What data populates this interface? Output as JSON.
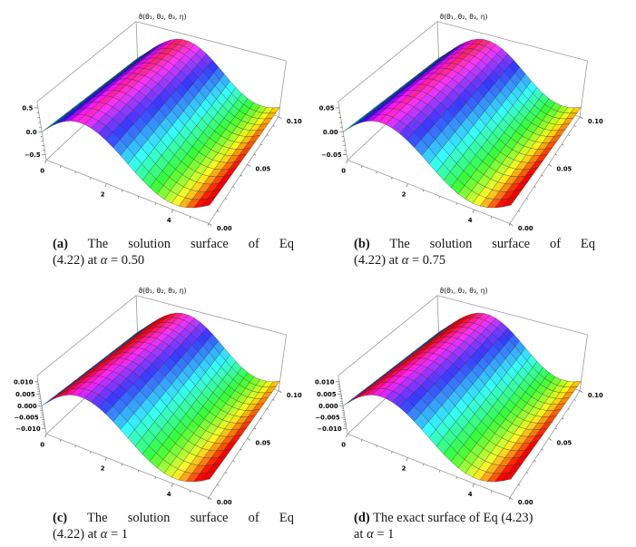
{
  "page": {
    "background": "#ffffff"
  },
  "captions": [
    {
      "label": "(a)",
      "line1": "The solution surface of Eq",
      "line2_pre": "(4.22) at ",
      "alpha": "α",
      "line2_post": " = 0.50",
      "justify": true
    },
    {
      "label": "(b)",
      "line1": "The solution surface of Eq",
      "line2_pre": "(4.22) at ",
      "alpha": "α",
      "line2_post": " = 0.75",
      "justify": true
    },
    {
      "label": "(c)",
      "line1": "The solution surface of Eq",
      "line2_pre": "(4.22) at ",
      "alpha": "α",
      "line2_post": " = 1",
      "justify": true
    },
    {
      "label": "(d)",
      "line1": "The exact surface of Eq (4.23)",
      "line2_pre": "at ",
      "alpha": "α",
      "line2_post": " = 1",
      "justify": false
    }
  ],
  "chart_data": [
    {
      "type": "surface",
      "id": "a",
      "title": "ϑ(θ₁, θ₂, θ₃, η)",
      "x_range": [
        0,
        5
      ],
      "x_ticks": [
        0,
        2,
        4
      ],
      "x_tick_labels": [
        "0",
        "2",
        "4"
      ],
      "x_minor_step": 0.5,
      "y_range": [
        0,
        0.1
      ],
      "y_ticks": [
        0,
        0.05,
        0.1
      ],
      "y_tick_labels": [
        "0.00",
        "0.05",
        "0.10"
      ],
      "y_minor_step": 0.01,
      "z_ticks": [
        0.5,
        0,
        -0.5
      ],
      "z_tick_labels": [
        "0.5",
        "0.0",
        "−0.5"
      ],
      "z_minor_step": 0.1,
      "amplitude": 0.5,
      "function": "ϑ ≈ 0.5·sin(1.164·x − 4.66·η)",
      "wave": {
        "a": 5.82,
        "b": -0.466
      },
      "hue_phase_peak": 1.45,
      "hue_peak": 0.88,
      "colormap": "rainbow: teal → blue → violet → magenta/red at ridge → cyan → green → yellow → orange → red",
      "mesh": [
        24,
        15
      ],
      "view_point": [
        1.3,
        -2.4,
        2
      ],
      "box_ratios": [
        1,
        1,
        0.4
      ],
      "grid": false,
      "legend": "none"
    },
    {
      "type": "surface",
      "id": "b",
      "title": "ϑ(θ₁, θ₂, θ₃, η)",
      "x_range": [
        0,
        5
      ],
      "x_ticks": [
        0,
        2,
        4
      ],
      "x_tick_labels": [
        "0",
        "2",
        "4"
      ],
      "x_minor_step": 0.5,
      "y_range": [
        0,
        0.1
      ],
      "y_ticks": [
        0,
        0.05,
        0.1
      ],
      "y_tick_labels": [
        "0.00",
        "0.05",
        "0.10"
      ],
      "y_minor_step": 0.01,
      "z_ticks": [
        0.05,
        0,
        -0.05
      ],
      "z_tick_labels": [
        "0.05",
        "0.00",
        "−0.05"
      ],
      "z_minor_step": 0.01,
      "amplitude": 0.05,
      "function": "ϑ ≈ 0.05·sin(1.164·x − 4.66·η)",
      "wave": {
        "a": 5.82,
        "b": -0.466
      },
      "hue_phase_peak": 1.45,
      "hue_peak": 0.88,
      "colormap": "rainbow: teal → blue → violet → magenta/red at ridge → cyan → green → yellow → orange → red",
      "mesh": [
        24,
        15
      ],
      "view_point": [
        1.3,
        -2.4,
        2
      ],
      "box_ratios": [
        1,
        1,
        0.4
      ],
      "grid": false,
      "legend": "none"
    },
    {
      "type": "surface",
      "id": "c",
      "title": "ϑ(θ₁, θ₂, θ₃, η)",
      "x_range": [
        0,
        5
      ],
      "x_ticks": [
        0,
        2,
        4
      ],
      "x_tick_labels": [
        "0",
        "2",
        "4"
      ],
      "x_minor_step": 0.5,
      "y_range": [
        0,
        0.1
      ],
      "y_ticks": [
        0,
        0.05,
        0.1
      ],
      "y_tick_labels": [
        "0.00",
        "0.05",
        "0.10"
      ],
      "y_minor_step": 0.01,
      "z_ticks": [
        0.01,
        0.005,
        0,
        -0.005,
        -0.01
      ],
      "z_tick_labels": [
        "0.010",
        "0.005",
        "0.000",
        "−0.005",
        "−0.010"
      ],
      "z_minor_step": 0.001,
      "amplitude": 0.01,
      "function": "ϑ ≈ 0.01·sin(1.164·x − 4.66·η)",
      "wave": {
        "a": 5.82,
        "b": -0.466
      },
      "hue_phase_peak": 0.58,
      "hue_peak": 1.0,
      "colormap": "rainbow: teal → red on rising slope → magenta ridge → cyan → green → yellow → orange → red",
      "mesh": [
        24,
        15
      ],
      "view_point": [
        1.3,
        -2.4,
        2
      ],
      "box_ratios": [
        1,
        1,
        0.4
      ],
      "grid": false,
      "legend": "none"
    },
    {
      "type": "surface",
      "id": "d",
      "title": "ϑ(θ₁, θ₂, θ₃, η)",
      "x_range": [
        0,
        5
      ],
      "x_ticks": [
        0,
        2,
        4
      ],
      "x_tick_labels": [
        "0",
        "2",
        "4"
      ],
      "x_minor_step": 0.5,
      "y_range": [
        0,
        0.1
      ],
      "y_ticks": [
        0,
        0.05,
        0.1
      ],
      "y_tick_labels": [
        "0.00",
        "0.05",
        "0.10"
      ],
      "y_minor_step": 0.01,
      "z_ticks": [
        0.01,
        0.005,
        0,
        -0.005,
        -0.01
      ],
      "z_tick_labels": [
        "0.010",
        "0.005",
        "0.000",
        "−0.005",
        "−0.010"
      ],
      "z_minor_step": 0.001,
      "amplitude": 0.01,
      "function": "ϑ ≈ 0.01·sin(1.164·x − 4.66·η)",
      "wave": {
        "a": 5.82,
        "b": -0.466
      },
      "hue_phase_peak": 0.58,
      "hue_peak": 1.0,
      "colormap": "rainbow: teal → red on rising slope → magenta ridge → cyan → green → yellow → orange → red",
      "mesh": [
        24,
        15
      ],
      "view_point": [
        1.3,
        -2.4,
        2
      ],
      "box_ratios": [
        1,
        1,
        0.4
      ],
      "grid": false,
      "legend": "none"
    }
  ]
}
